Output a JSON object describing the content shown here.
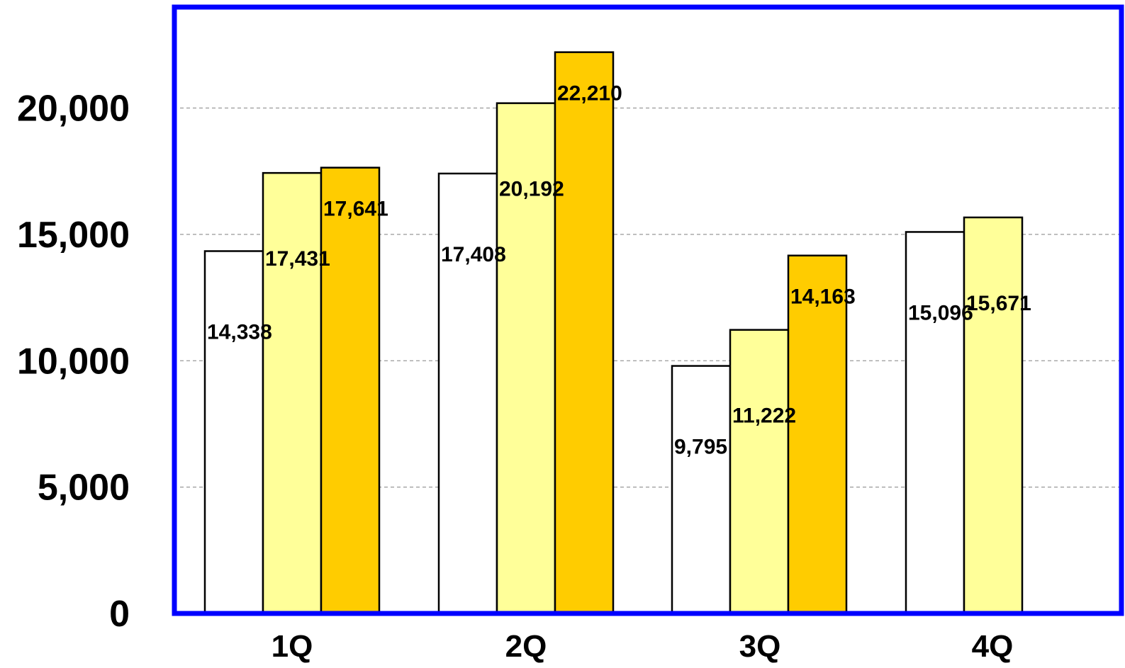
{
  "chart_data": {
    "type": "bar",
    "title": "",
    "xlabel": "",
    "ylabel": "",
    "categories": [
      "1Q",
      "2Q",
      "3Q",
      "4Q"
    ],
    "ylim": [
      0,
      24000
    ],
    "yticks": [
      0,
      5000,
      10000,
      15000,
      20000
    ],
    "ytick_labels": [
      "0",
      "5,000",
      "10,000",
      "15,000",
      "20,000"
    ],
    "grid": true,
    "legend": "none",
    "frame_color": "#0000ff",
    "series": [
      {
        "color": "#ffffff",
        "values": [
          14338,
          17408,
          9795,
          15096
        ],
        "labels": [
          "14,338",
          "17,408",
          "9,795",
          "15,096"
        ]
      },
      {
        "color": "#ffff99",
        "values": [
          17431,
          20192,
          11222,
          15671
        ],
        "labels": [
          "17,431",
          "20,192",
          "11,222",
          "15,671"
        ]
      },
      {
        "color": "#ffcc00",
        "values": [
          17641,
          22210,
          14163,
          null
        ],
        "labels": [
          "17,641",
          "22,210",
          "14,163",
          null
        ]
      }
    ]
  }
}
